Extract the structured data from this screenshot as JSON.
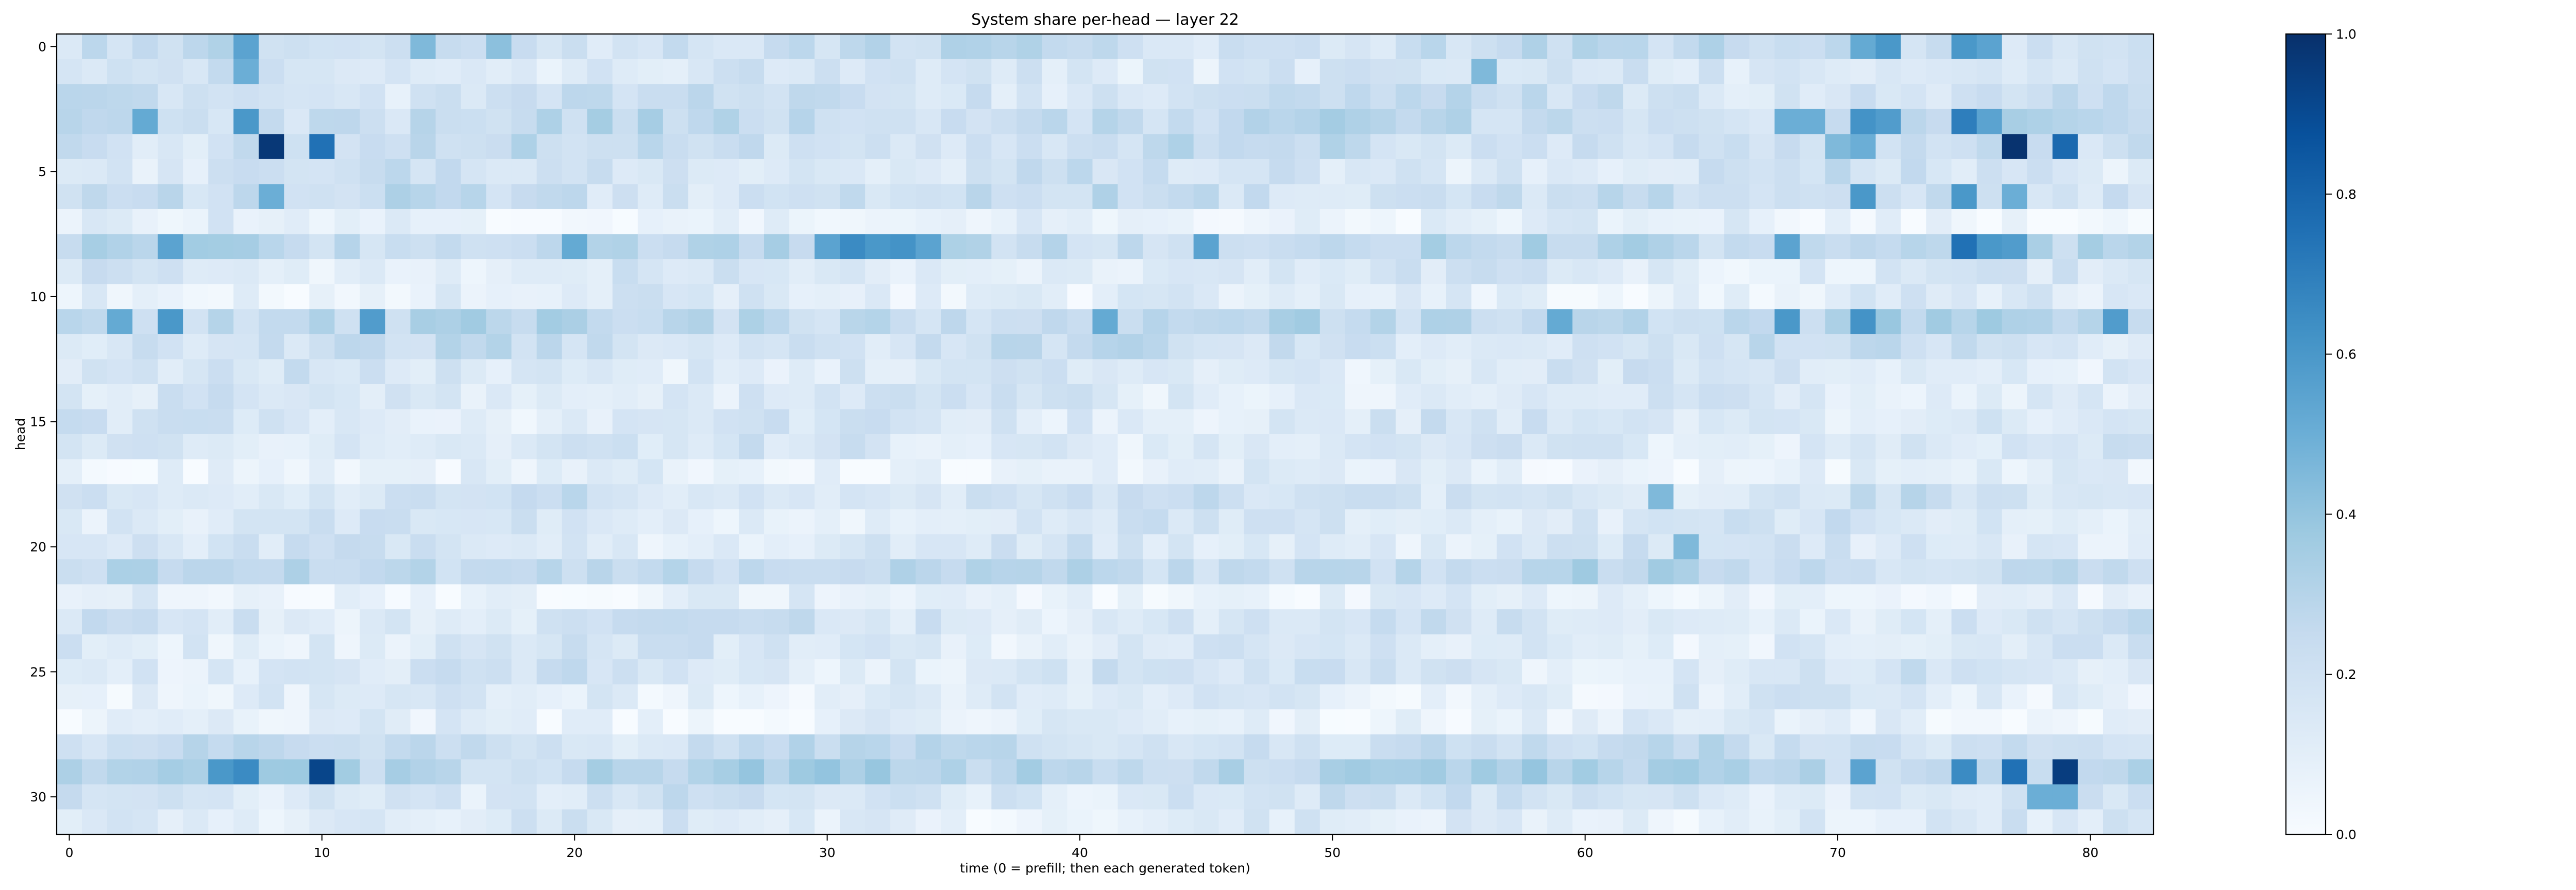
{
  "chart_data": {
    "type": "heatmap",
    "title": "System share per-head — layer 22",
    "xlabel": "time (0 = prefill; then each generated token)",
    "ylabel": "head",
    "x_count": 83,
    "y_count": 32,
    "x_ticks": [
      0,
      10,
      20,
      30,
      40,
      50,
      60,
      70,
      80
    ],
    "y_ticks": [
      0,
      5,
      10,
      15,
      20,
      25,
      30
    ],
    "colorbar": {
      "min": 0.0,
      "max": 1.0,
      "ticks": [
        0.0,
        0.2,
        0.4,
        0.6,
        0.8,
        1.0
      ],
      "tick_labels": [
        "0.0",
        "0.2",
        "0.4",
        "0.6",
        "0.8",
        "1.0"
      ]
    },
    "colormap": "Blues",
    "colormap_colors": [
      "#f7fbff",
      "#deebf7",
      "#c6dbef",
      "#9ecae1",
      "#6baed6",
      "#4292c6",
      "#2171b5",
      "#08519c",
      "#08306b"
    ],
    "row_base": [
      0.22,
      0.17,
      0.2,
      0.24,
      0.22,
      0.17,
      0.22,
      0.08,
      0.26,
      0.14,
      0.11,
      0.27,
      0.2,
      0.15,
      0.14,
      0.15,
      0.15,
      0.08,
      0.18,
      0.15,
      0.15,
      0.26,
      0.07,
      0.17,
      0.14,
      0.16,
      0.11,
      0.08,
      0.22,
      0.3,
      0.17,
      0.12
    ],
    "highlights": [
      {
        "row": 0,
        "col": 7,
        "value": 0.55
      },
      {
        "row": 1,
        "col": 7,
        "value": 0.5
      },
      {
        "row": 0,
        "col": 14,
        "value": 0.45
      },
      {
        "row": 0,
        "col": 17,
        "value": 0.42
      },
      {
        "row": 0,
        "col": 71,
        "value": 0.52
      },
      {
        "row": 0,
        "col": 72,
        "value": 0.6
      },
      {
        "row": 0,
        "col": 75,
        "value": 0.6
      },
      {
        "row": 0,
        "col": 76,
        "value": 0.55
      },
      {
        "row": 1,
        "col": 56,
        "value": 0.45
      },
      {
        "row": 3,
        "col": 3,
        "value": 0.52
      },
      {
        "row": 3,
        "col": 7,
        "value": 0.6
      },
      {
        "row": 3,
        "col": 68,
        "value": 0.5
      },
      {
        "row": 3,
        "col": 69,
        "value": 0.5
      },
      {
        "row": 3,
        "col": 71,
        "value": 0.62
      },
      {
        "row": 3,
        "col": 72,
        "value": 0.58
      },
      {
        "row": 3,
        "col": 75,
        "value": 0.7
      },
      {
        "row": 3,
        "col": 76,
        "value": 0.55
      },
      {
        "row": 4,
        "col": 8,
        "value": 0.97
      },
      {
        "row": 4,
        "col": 10,
        "value": 0.75
      },
      {
        "row": 4,
        "col": 77,
        "value": 0.99
      },
      {
        "row": 4,
        "col": 79,
        "value": 0.78
      },
      {
        "row": 4,
        "col": 71,
        "value": 0.5
      },
      {
        "row": 4,
        "col": 70,
        "value": 0.45
      },
      {
        "row": 6,
        "col": 8,
        "value": 0.5
      },
      {
        "row": 6,
        "col": 71,
        "value": 0.6
      },
      {
        "row": 6,
        "col": 75,
        "value": 0.6
      },
      {
        "row": 6,
        "col": 77,
        "value": 0.5
      },
      {
        "row": 8,
        "col": 4,
        "value": 0.55
      },
      {
        "row": 8,
        "col": 20,
        "value": 0.52
      },
      {
        "row": 8,
        "col": 30,
        "value": 0.55
      },
      {
        "row": 8,
        "col": 31,
        "value": 0.65
      },
      {
        "row": 8,
        "col": 32,
        "value": 0.6
      },
      {
        "row": 8,
        "col": 33,
        "value": 0.62
      },
      {
        "row": 8,
        "col": 34,
        "value": 0.55
      },
      {
        "row": 8,
        "col": 45,
        "value": 0.55
      },
      {
        "row": 8,
        "col": 68,
        "value": 0.55
      },
      {
        "row": 8,
        "col": 75,
        "value": 0.75
      },
      {
        "row": 8,
        "col": 76,
        "value": 0.6
      },
      {
        "row": 8,
        "col": 77,
        "value": 0.58
      },
      {
        "row": 11,
        "col": 2,
        "value": 0.52
      },
      {
        "row": 11,
        "col": 4,
        "value": 0.6
      },
      {
        "row": 11,
        "col": 12,
        "value": 0.58
      },
      {
        "row": 11,
        "col": 41,
        "value": 0.52
      },
      {
        "row": 11,
        "col": 59,
        "value": 0.52
      },
      {
        "row": 11,
        "col": 68,
        "value": 0.6
      },
      {
        "row": 11,
        "col": 71,
        "value": 0.62
      },
      {
        "row": 11,
        "col": 81,
        "value": 0.58
      },
      {
        "row": 20,
        "col": 64,
        "value": 0.45
      },
      {
        "row": 18,
        "col": 63,
        "value": 0.45
      },
      {
        "row": 29,
        "col": 6,
        "value": 0.6
      },
      {
        "row": 29,
        "col": 7,
        "value": 0.65
      },
      {
        "row": 29,
        "col": 10,
        "value": 0.92
      },
      {
        "row": 29,
        "col": 71,
        "value": 0.55
      },
      {
        "row": 29,
        "col": 75,
        "value": 0.65
      },
      {
        "row": 29,
        "col": 77,
        "value": 0.75
      },
      {
        "row": 29,
        "col": 79,
        "value": 0.95
      },
      {
        "row": 30,
        "col": 78,
        "value": 0.5
      },
      {
        "row": 30,
        "col": 79,
        "value": 0.5
      }
    ]
  }
}
